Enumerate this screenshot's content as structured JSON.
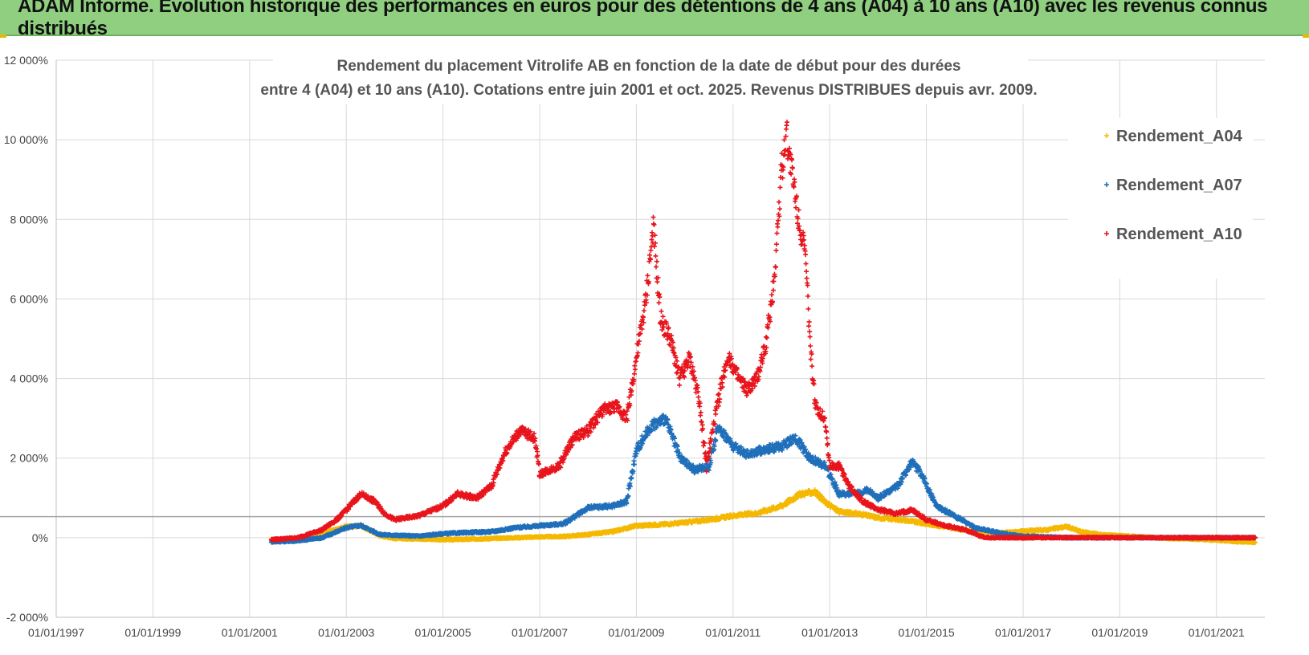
{
  "banner": {
    "title": "ADAM Informe. Evolution historique des performances en euros pour des détentions de 4 ans (A04) à 10 ans (A10) avec les revenus connus distribués"
  },
  "chart_data": {
    "type": "scatter",
    "title_line1": "Rendement du placement Vitrolife AB en fonction de la date de début pour des durées",
    "title_line2": "entre 4 (A04) et 10 ans (A10). Cotations entre juin 2001 et oct. 2025. Revenus DISTRIBUES depuis avr. 2009.",
    "ylim": [
      -2000,
      12000
    ],
    "y_ticks": [
      {
        "value": -2000,
        "label": "-2 000%"
      },
      {
        "value": 0,
        "label": "0%"
      },
      {
        "value": 2000,
        "label": "2 000%"
      },
      {
        "value": 4000,
        "label": "4 000%"
      },
      {
        "value": 6000,
        "label": "6 000%"
      },
      {
        "value": 8000,
        "label": "8 000%"
      },
      {
        "value": 10000,
        "label": "10 000%"
      },
      {
        "value": 12000,
        "label": "12 000%"
      }
    ],
    "xlim": [
      1997.0,
      2022.0
    ],
    "x_ticks": [
      {
        "value": 1997,
        "label": "01/01/1997"
      },
      {
        "value": 1999,
        "label": "01/01/1999"
      },
      {
        "value": 2001,
        "label": "01/01/2001"
      },
      {
        "value": 2003,
        "label": "01/01/2003"
      },
      {
        "value": 2005,
        "label": "01/01/2005"
      },
      {
        "value": 2007,
        "label": "01/01/2007"
      },
      {
        "value": 2009,
        "label": "01/01/2009"
      },
      {
        "value": 2011,
        "label": "01/01/2011"
      },
      {
        "value": 2013,
        "label": "01/01/2013"
      },
      {
        "value": 2015,
        "label": "01/01/2015"
      },
      {
        "value": 2017,
        "label": "01/01/2017"
      },
      {
        "value": 2019,
        "label": "01/01/2019"
      },
      {
        "value": 2021,
        "label": "01/01/2021"
      }
    ],
    "reference_line": 530,
    "legend_position": "right",
    "series": [
      {
        "name": "Rendement_A04",
        "color": "#f5b800",
        "points": [
          [
            2001.45,
            -50
          ],
          [
            2002.0,
            -30
          ],
          [
            2002.5,
            100
          ],
          [
            2003.0,
            280
          ],
          [
            2003.3,
            300
          ],
          [
            2003.7,
            50
          ],
          [
            2004.0,
            -20
          ],
          [
            2004.5,
            -30
          ],
          [
            2005.0,
            -50
          ],
          [
            2005.5,
            -40
          ],
          [
            2006.0,
            -20
          ],
          [
            2006.5,
            0
          ],
          [
            2007.0,
            20
          ],
          [
            2007.5,
            30
          ],
          [
            2008.0,
            80
          ],
          [
            2008.5,
            150
          ],
          [
            2009.0,
            300
          ],
          [
            2009.5,
            330
          ],
          [
            2010.0,
            380
          ],
          [
            2010.5,
            450
          ],
          [
            2011.0,
            550
          ],
          [
            2011.5,
            620
          ],
          [
            2012.0,
            800
          ],
          [
            2012.4,
            1100
          ],
          [
            2012.7,
            1150
          ],
          [
            2012.9,
            900
          ],
          [
            2013.2,
            650
          ],
          [
            2013.6,
            600
          ],
          [
            2014.0,
            500
          ],
          [
            2014.5,
            450
          ],
          [
            2015.0,
            350
          ],
          [
            2015.5,
            250
          ],
          [
            2016.0,
            150
          ],
          [
            2016.5,
            120
          ],
          [
            2017.0,
            160
          ],
          [
            2017.5,
            200
          ],
          [
            2017.9,
            280
          ],
          [
            2018.2,
            150
          ],
          [
            2018.6,
            80
          ],
          [
            2019.0,
            50
          ],
          [
            2019.5,
            20
          ],
          [
            2020.0,
            -20
          ],
          [
            2020.5,
            -30
          ],
          [
            2021.0,
            -60
          ],
          [
            2021.5,
            -100
          ],
          [
            2021.8,
            -120
          ]
        ]
      },
      {
        "name": "Rendement_A07",
        "color": "#1f6fba",
        "points": [
          [
            2001.45,
            -100
          ],
          [
            2002.0,
            -80
          ],
          [
            2002.5,
            0
          ],
          [
            2003.0,
            250
          ],
          [
            2003.3,
            310
          ],
          [
            2003.7,
            80
          ],
          [
            2004.0,
            60
          ],
          [
            2004.5,
            40
          ],
          [
            2005.0,
            100
          ],
          [
            2005.5,
            130
          ],
          [
            2006.0,
            150
          ],
          [
            2006.5,
            250
          ],
          [
            2007.0,
            300
          ],
          [
            2007.5,
            350
          ],
          [
            2008.0,
            750
          ],
          [
            2008.5,
            800
          ],
          [
            2008.8,
            900
          ],
          [
            2009.0,
            2200
          ],
          [
            2009.3,
            2800
          ],
          [
            2009.6,
            3000
          ],
          [
            2009.9,
            2000
          ],
          [
            2010.2,
            1700
          ],
          [
            2010.5,
            1800
          ],
          [
            2010.7,
            2800
          ],
          [
            2011.0,
            2300
          ],
          [
            2011.3,
            2100
          ],
          [
            2011.6,
            2200
          ],
          [
            2012.0,
            2300
          ],
          [
            2012.3,
            2500
          ],
          [
            2012.6,
            2000
          ],
          [
            2012.9,
            1800
          ],
          [
            2013.2,
            1100
          ],
          [
            2013.5,
            1100
          ],
          [
            2013.8,
            1200
          ],
          [
            2014.0,
            1000
          ],
          [
            2014.4,
            1300
          ],
          [
            2014.7,
            1900
          ],
          [
            2014.9,
            1600
          ],
          [
            2015.2,
            800
          ],
          [
            2015.5,
            600
          ],
          [
            2015.8,
            400
          ],
          [
            2016.0,
            250
          ],
          [
            2016.4,
            150
          ],
          [
            2016.7,
            80
          ],
          [
            2017.0,
            40
          ],
          [
            2018.0,
            0
          ],
          [
            2019.0,
            0
          ],
          [
            2020.0,
            0
          ],
          [
            2021.0,
            0
          ],
          [
            2021.8,
            0
          ]
        ]
      },
      {
        "name": "Rendement_A10",
        "color": "#e8141c",
        "points": [
          [
            2001.45,
            -50
          ],
          [
            2002.0,
            0
          ],
          [
            2002.5,
            200
          ],
          [
            2002.8,
            450
          ],
          [
            2003.0,
            700
          ],
          [
            2003.3,
            1100
          ],
          [
            2003.6,
            900
          ],
          [
            2003.8,
            600
          ],
          [
            2004.0,
            450
          ],
          [
            2004.5,
            550
          ],
          [
            2005.0,
            800
          ],
          [
            2005.3,
            1100
          ],
          [
            2005.7,
            1000
          ],
          [
            2006.0,
            1300
          ],
          [
            2006.3,
            2200
          ],
          [
            2006.6,
            2700
          ],
          [
            2006.9,
            2500
          ],
          [
            2007.0,
            1600
          ],
          [
            2007.4,
            1800
          ],
          [
            2007.7,
            2500
          ],
          [
            2008.0,
            2700
          ],
          [
            2008.3,
            3200
          ],
          [
            2008.6,
            3300
          ],
          [
            2008.8,
            3000
          ],
          [
            2009.0,
            4500
          ],
          [
            2009.2,
            6000
          ],
          [
            2009.35,
            7800
          ],
          [
            2009.5,
            5500
          ],
          [
            2009.7,
            5000
          ],
          [
            2009.9,
            4000
          ],
          [
            2010.1,
            4500
          ],
          [
            2010.3,
            3500
          ],
          [
            2010.45,
            1800
          ],
          [
            2010.7,
            3500
          ],
          [
            2010.9,
            4600
          ],
          [
            2011.1,
            4000
          ],
          [
            2011.3,
            3700
          ],
          [
            2011.5,
            4000
          ],
          [
            2011.7,
            5000
          ],
          [
            2011.85,
            6500
          ],
          [
            2012.0,
            9200
          ],
          [
            2012.1,
            10200
          ],
          [
            2012.3,
            8500
          ],
          [
            2012.5,
            7000
          ],
          [
            2012.6,
            4800
          ],
          [
            2012.7,
            3300
          ],
          [
            2012.9,
            3000
          ],
          [
            2013.0,
            1800
          ],
          [
            2013.2,
            1800
          ],
          [
            2013.4,
            1300
          ],
          [
            2013.7,
            900
          ],
          [
            2014.0,
            700
          ],
          [
            2014.4,
            600
          ],
          [
            2014.7,
            700
          ],
          [
            2015.0,
            450
          ],
          [
            2015.4,
            300
          ],
          [
            2015.8,
            200
          ],
          [
            2016.2,
            0
          ],
          [
            2017.0,
            0
          ],
          [
            2018.0,
            0
          ],
          [
            2019.0,
            0
          ],
          [
            2020.0,
            0
          ],
          [
            2021.0,
            0
          ],
          [
            2021.8,
            0
          ]
        ]
      }
    ]
  }
}
